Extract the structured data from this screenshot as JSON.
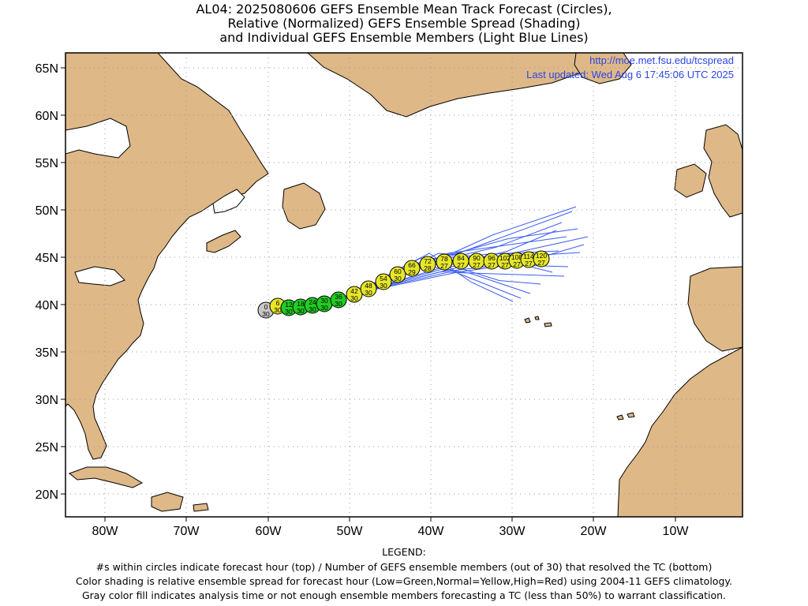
{
  "title": {
    "line1": "AL04: 2025080606 GEFS Ensemble Mean Track Forecast (Circles),",
    "line2": "Relative (Normalized) GEFS Ensemble Spread (Shading)",
    "line3": "and Individual GEFS Ensemble Members (Light Blue Lines)"
  },
  "map": {
    "url": "http://moe.met.fsu.edu/tcspread",
    "updated": "Last updated: Wed Aug 6 17:45:06 UTC 2025",
    "lat_labels": [
      "65N",
      "60N",
      "55N",
      "50N",
      "45N",
      "40N",
      "35N",
      "30N",
      "25N",
      "20N"
    ],
    "lon_labels": [
      "80W",
      "70W",
      "60W",
      "50W",
      "40W",
      "30W",
      "20W",
      "10W"
    ],
    "colors": {
      "land": "#deb887",
      "ocean": "#ffffff",
      "track_lines": "#3b5cf5",
      "low_spread": "#22cc22",
      "normal_spread": "#e6e62a",
      "gray": "#c8c8c8",
      "url_text": "#2b47e6"
    }
  },
  "forecast_points": [
    {
      "hour": "0",
      "members": "30",
      "color": "gray"
    },
    {
      "hour": "6",
      "members": "30",
      "color": "yellow"
    },
    {
      "hour": "12",
      "members": "30",
      "color": "green"
    },
    {
      "hour": "18",
      "members": "30",
      "color": "green"
    },
    {
      "hour": "24",
      "members": "30",
      "color": "green"
    },
    {
      "hour": "30",
      "members": "30",
      "color": "green"
    },
    {
      "hour": "36",
      "members": "30",
      "color": "green"
    },
    {
      "hour": "42",
      "members": "30",
      "color": "yellow"
    },
    {
      "hour": "48",
      "members": "30",
      "color": "yellow"
    },
    {
      "hour": "54",
      "members": "30",
      "color": "yellow"
    },
    {
      "hour": "60",
      "members": "30",
      "color": "yellow"
    },
    {
      "hour": "66",
      "members": "29",
      "color": "yellow"
    },
    {
      "hour": "72",
      "members": "28",
      "color": "yellow"
    },
    {
      "hour": "78",
      "members": "27",
      "color": "yellow"
    },
    {
      "hour": "84",
      "members": "27",
      "color": "yellow"
    },
    {
      "hour": "90",
      "members": "27",
      "color": "yellow"
    },
    {
      "hour": "96",
      "members": "27",
      "color": "yellow"
    },
    {
      "hour": "102",
      "members": "27",
      "color": "yellow"
    },
    {
      "hour": "108",
      "members": "27",
      "color": "yellow"
    },
    {
      "hour": "114",
      "members": "27",
      "color": "yellow"
    },
    {
      "hour": "120",
      "members": "27",
      "color": "yellow"
    }
  ],
  "legend": {
    "heading": "LEGEND:",
    "line1": "#s within circles indicate forecast hour (top) / Number of GEFS ensemble members (out of 30) that resolved the TC (bottom)",
    "line2": "Color shading is relative ensemble spread for forecast hour (Low=Green,Normal=Yellow,High=Red) using 2004-11 GEFS climatology.",
    "line3": "Gray color fill indicates analysis time or not enough ensemble members forecasting a TC (less than 50%) to warrant classification."
  }
}
